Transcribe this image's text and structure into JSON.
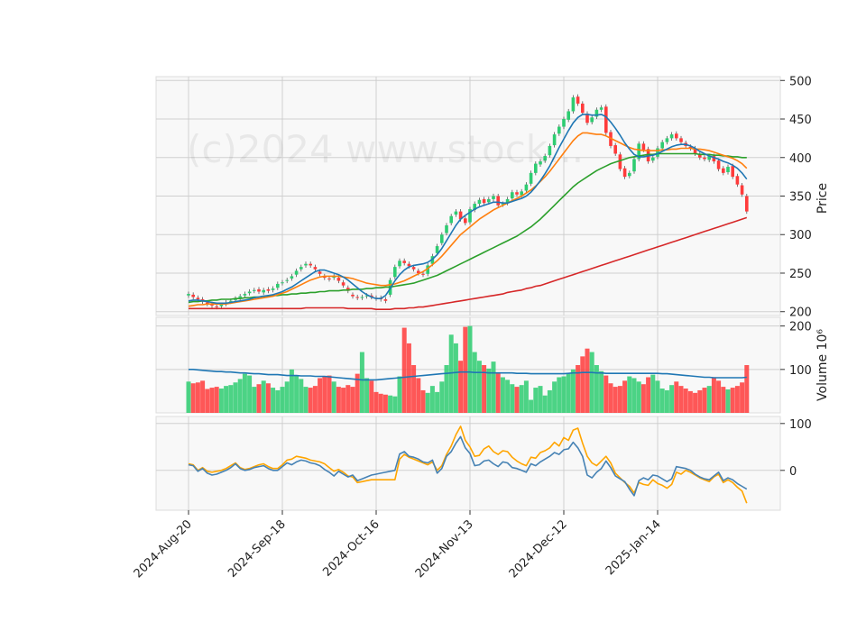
{
  "chart_data": {
    "type": "candlestick",
    "watermark": "(c)2024 www.stock...",
    "colors": {
      "up": "#2ecc71",
      "down": "#ff3b3b",
      "ma_blue": "#1f77b4",
      "ma_orange": "#ff7f0e",
      "ma_green": "#2ca02c",
      "ma_red": "#d62728",
      "osc_blue": "#4682b4",
      "osc_orange": "#ffa500",
      "panel_bg": "#f8f8f8",
      "grid": "#cfcfcf"
    },
    "x_tick_labels": [
      "2024-Aug-20",
      "2024-Sep-18",
      "2024-Oct-16",
      "2024-Nov-13",
      "2024-Dec-12",
      "2025-Jan-14"
    ],
    "x_tick_index": [
      0,
      20,
      40,
      60,
      80,
      100
    ],
    "n_days": 120,
    "price_panel": {
      "ylabel": "Price",
      "ylim": [
        195,
        505
      ],
      "yticks": [
        200,
        250,
        300,
        350,
        400,
        450,
        500
      ],
      "close": [
        223,
        219,
        216,
        213,
        210,
        208,
        206,
        209,
        212,
        214,
        217,
        220,
        223,
        226,
        228,
        226,
        228,
        227,
        230,
        236,
        238,
        241,
        246,
        253,
        258,
        262,
        260,
        255,
        249,
        244,
        242,
        246,
        240,
        234,
        227,
        220,
        218,
        219,
        221,
        219,
        217,
        216,
        214,
        241,
        258,
        266,
        263,
        259,
        255,
        250,
        248,
        260,
        272,
        285,
        300,
        312,
        324,
        330,
        320,
        315,
        333,
        340,
        345,
        341,
        346,
        350,
        338,
        340,
        346,
        355,
        352,
        356,
        365,
        380,
        392,
        395,
        402,
        415,
        430,
        440,
        450,
        460,
        478,
        470,
        458,
        445,
        452,
        462,
        465,
        432,
        415,
        405,
        385,
        375,
        380,
        398,
        418,
        410,
        395,
        400,
        412,
        420,
        425,
        430,
        425,
        420,
        415,
        412,
        405,
        400,
        398,
        402,
        395,
        385,
        380,
        388,
        375,
        365,
        352,
        330
      ],
      "open": [
        221,
        222,
        218,
        216,
        212,
        210,
        207,
        207,
        210,
        213,
        215,
        218,
        221,
        224,
        227,
        229,
        225,
        229,
        228,
        231,
        237,
        240,
        243,
        248,
        255,
        260,
        262,
        258,
        252,
        246,
        243,
        244,
        244,
        238,
        231,
        222,
        219,
        218,
        220,
        221,
        218,
        218,
        216,
        222,
        245,
        259,
        266,
        262,
        258,
        253,
        249,
        249,
        262,
        276,
        289,
        302,
        315,
        326,
        330,
        321,
        316,
        332,
        340,
        346,
        342,
        346,
        350,
        339,
        341,
        347,
        355,
        351,
        357,
        366,
        380,
        391,
        396,
        403,
        416,
        431,
        440,
        449,
        460,
        479,
        470,
        457,
        446,
        453,
        462,
        466,
        433,
        416,
        404,
        386,
        376,
        382,
        398,
        418,
        411,
        396,
        401,
        412,
        420,
        425,
        431,
        425,
        419,
        414,
        412,
        405,
        400,
        397,
        402,
        396,
        386,
        381,
        389,
        376,
        364,
        350
      ],
      "ma_blue": [
        214,
        215,
        215,
        214,
        213,
        212,
        211,
        211,
        211,
        212,
        213,
        214,
        215,
        216,
        218,
        219,
        220,
        221,
        222,
        224,
        226,
        229,
        232,
        236,
        240,
        244,
        248,
        252,
        254,
        254,
        252,
        250,
        248,
        245,
        241,
        236,
        231,
        226,
        222,
        219,
        217,
        217,
        221,
        230,
        240,
        248,
        254,
        258,
        260,
        261,
        262,
        264,
        268,
        274,
        282,
        292,
        302,
        312,
        320,
        325,
        329,
        333,
        336,
        338,
        340,
        342,
        342,
        341,
        341,
        343,
        345,
        347,
        350,
        355,
        362,
        370,
        379,
        389,
        401,
        413,
        424,
        435,
        445,
        452,
        456,
        456,
        455,
        455,
        456,
        453,
        446,
        438,
        429,
        419,
        411,
        404,
        401,
        401,
        402,
        403,
        405,
        408,
        411,
        414,
        416,
        417,
        417,
        415,
        412,
        408,
        405,
        402,
        400,
        398,
        395,
        393,
        390,
        386,
        380,
        372
      ],
      "ma_orange": [
        207,
        208,
        209,
        209,
        210,
        210,
        210,
        210,
        210,
        211,
        212,
        213,
        214,
        215,
        216,
        217,
        218,
        219,
        220,
        222,
        224,
        226,
        229,
        232,
        235,
        238,
        241,
        243,
        245,
        246,
        246,
        246,
        246,
        245,
        244,
        243,
        241,
        239,
        237,
        236,
        235,
        234,
        234,
        235,
        236,
        238,
        240,
        243,
        246,
        249,
        252,
        256,
        261,
        266,
        272,
        279,
        286,
        293,
        300,
        305,
        310,
        315,
        320,
        324,
        328,
        332,
        335,
        338,
        341,
        344,
        347,
        350,
        354,
        358,
        363,
        369,
        375,
        382,
        390,
        398,
        406,
        414,
        422,
        428,
        432,
        432,
        431,
        430,
        430,
        428,
        425,
        422,
        419,
        416,
        413,
        411,
        410,
        409,
        409,
        409,
        409,
        410,
        410,
        411,
        411,
        412,
        412,
        412,
        411,
        411,
        410,
        409,
        407,
        405,
        403,
        401,
        399,
        396,
        392,
        386
      ],
      "ma_green": [
        212,
        213,
        213,
        214,
        214,
        215,
        215,
        216,
        216,
        216,
        217,
        217,
        218,
        218,
        219,
        219,
        220,
        220,
        221,
        221,
        222,
        222,
        223,
        223,
        224,
        224,
        225,
        225,
        226,
        226,
        227,
        227,
        227,
        228,
        228,
        229,
        229,
        229,
        230,
        230,
        231,
        231,
        232,
        232,
        233,
        234,
        235,
        236,
        237,
        239,
        241,
        243,
        245,
        247,
        250,
        253,
        256,
        259,
        262,
        265,
        268,
        271,
        274,
        277,
        280,
        283,
        286,
        289,
        292,
        295,
        298,
        302,
        306,
        310,
        315,
        320,
        326,
        332,
        338,
        344,
        350,
        356,
        362,
        367,
        371,
        375,
        379,
        383,
        386,
        389,
        392,
        394,
        396,
        398,
        400,
        401,
        402,
        403,
        404,
        404,
        405,
        405,
        405,
        405,
        405,
        405,
        405,
        405,
        405,
        404,
        404,
        404,
        403,
        403,
        402,
        402,
        401,
        401,
        400,
        400
      ],
      "ma_red": [
        204,
        204,
        204,
        204,
        204,
        204,
        204,
        204,
        204,
        204,
        204,
        204,
        204,
        204,
        204,
        204,
        204,
        204,
        204,
        204,
        204,
        204,
        204,
        204,
        204,
        205,
        205,
        205,
        205,
        205,
        205,
        205,
        205,
        205,
        204,
        204,
        204,
        204,
        204,
        204,
        203,
        203,
        203,
        203,
        204,
        204,
        204,
        205,
        205,
        206,
        206,
        207,
        208,
        209,
        210,
        211,
        212,
        213,
        214,
        215,
        216,
        217,
        218,
        219,
        220,
        221,
        222,
        223,
        225,
        226,
        227,
        228,
        230,
        231,
        233,
        234,
        236,
        238,
        240,
        242,
        244,
        246,
        248,
        250,
        252,
        254,
        256,
        258,
        260,
        262,
        264,
        266,
        268,
        270,
        272,
        274,
        276,
        278,
        280,
        282,
        284,
        286,
        288,
        290,
        292,
        294,
        296,
        298,
        300,
        302,
        304,
        306,
        308,
        310,
        312,
        314,
        316,
        318,
        320,
        322
      ]
    },
    "volume_panel": {
      "ylabel": "Volume  10⁶",
      "ylim": [
        0,
        220
      ],
      "yticks": [
        100,
        200
      ],
      "volume": [
        72,
        68,
        70,
        74,
        55,
        58,
        60,
        56,
        62,
        64,
        70,
        78,
        90,
        86,
        60,
        66,
        74,
        68,
        58,
        52,
        60,
        72,
        100,
        86,
        78,
        60,
        58,
        62,
        80,
        84,
        86,
        72,
        60,
        58,
        64,
        60,
        90,
        140,
        80,
        74,
        48,
        44,
        42,
        40,
        38,
        84,
        196,
        160,
        110,
        80,
        52,
        46,
        62,
        48,
        72,
        110,
        180,
        160,
        120,
        198,
        200,
        140,
        120,
        110,
        102,
        118,
        92,
        82,
        76,
        66,
        60,
        64,
        74,
        30,
        58,
        62,
        40,
        52,
        72,
        82,
        84,
        90,
        100,
        110,
        130,
        148,
        140,
        110,
        96,
        86,
        68,
        60,
        62,
        74,
        84,
        80,
        72,
        66,
        82,
        88,
        74,
        56,
        52,
        64,
        72,
        62,
        56,
        50,
        46,
        52,
        58,
        62,
        82,
        74,
        60,
        54,
        58,
        62,
        70,
        110
      ],
      "volume_ma": [
        100,
        100,
        99,
        98,
        97,
        96,
        95,
        95,
        94,
        94,
        93,
        92,
        92,
        91,
        90,
        90,
        89,
        88,
        88,
        88,
        87,
        86,
        86,
        86,
        85,
        85,
        85,
        84,
        84,
        84,
        83,
        82,
        81,
        80,
        79,
        78,
        77,
        76,
        76,
        76,
        76,
        77,
        78,
        79,
        80,
        81,
        82,
        83,
        84,
        85,
        86,
        87,
        88,
        89,
        90,
        91,
        92,
        93,
        94,
        94,
        94,
        93,
        93,
        93,
        92,
        92,
        92,
        92,
        92,
        92,
        91,
        91,
        91,
        90,
        90,
        90,
        90,
        90,
        90,
        90,
        90,
        91,
        92,
        92,
        93,
        93,
        93,
        92,
        92,
        91,
        91,
        91,
        91,
        91,
        91,
        91,
        91,
        91,
        91,
        91,
        91,
        90,
        90,
        89,
        88,
        87,
        86,
        85,
        84,
        83,
        82,
        82,
        81,
        81,
        81,
        81,
        81,
        81,
        81,
        82
      ]
    },
    "osc_panel": {
      "ylim": [
        -85,
        115
      ],
      "yticks": [
        0,
        100
      ],
      "blue": [
        12,
        10,
        -2,
        4,
        -6,
        -10,
        -8,
        -4,
        0,
        6,
        14,
        4,
        0,
        2,
        6,
        8,
        10,
        4,
        0,
        0,
        8,
        16,
        12,
        18,
        22,
        20,
        16,
        14,
        10,
        2,
        -4,
        -12,
        -2,
        -8,
        -14,
        -10,
        -22,
        -18,
        -14,
        -10,
        -8,
        -6,
        -4,
        -2,
        0,
        35,
        40,
        30,
        28,
        24,
        18,
        16,
        22,
        -6,
        4,
        30,
        40,
        58,
        72,
        48,
        36,
        10,
        12,
        20,
        22,
        14,
        8,
        18,
        16,
        6,
        4,
        0,
        -4,
        14,
        10,
        18,
        24,
        30,
        38,
        34,
        44,
        46,
        60,
        48,
        30,
        -10,
        -16,
        -4,
        4,
        20,
        6,
        -12,
        -18,
        -24,
        -40,
        -54,
        -22,
        -16,
        -20,
        -10,
        -12,
        -18,
        -24,
        -18,
        8,
        6,
        4,
        0,
        -8,
        -14,
        -18,
        -20,
        -12,
        -4,
        -22,
        -16,
        -20,
        -28,
        -34,
        -40
      ],
      "orange": [
        14,
        12,
        0,
        6,
        -2,
        -4,
        -2,
        0,
        4,
        10,
        16,
        6,
        2,
        4,
        8,
        12,
        14,
        8,
        4,
        4,
        12,
        22,
        24,
        30,
        28,
        26,
        22,
        20,
        18,
        14,
        6,
        -2,
        2,
        -4,
        -12,
        -14,
        -26,
        -24,
        -22,
        -20,
        -20,
        -20,
        -20,
        -20,
        -20,
        24,
        34,
        28,
        24,
        20,
        16,
        12,
        18,
        0,
        10,
        34,
        52,
        76,
        94,
        64,
        50,
        30,
        32,
        46,
        52,
        40,
        34,
        42,
        40,
        28,
        20,
        14,
        10,
        28,
        26,
        38,
        42,
        48,
        60,
        52,
        70,
        64,
        86,
        90,
        58,
        30,
        16,
        10,
        20,
        30,
        16,
        -6,
        -16,
        -26,
        -34,
        -48,
        -26,
        -30,
        -32,
        -20,
        -28,
        -32,
        -38,
        -30,
        -4,
        -8,
        0,
        -4,
        -10,
        -16,
        -20,
        -24,
        -14,
        -8,
        -26,
        -20,
        -26,
        -36,
        -44,
        -70
      ]
    }
  }
}
